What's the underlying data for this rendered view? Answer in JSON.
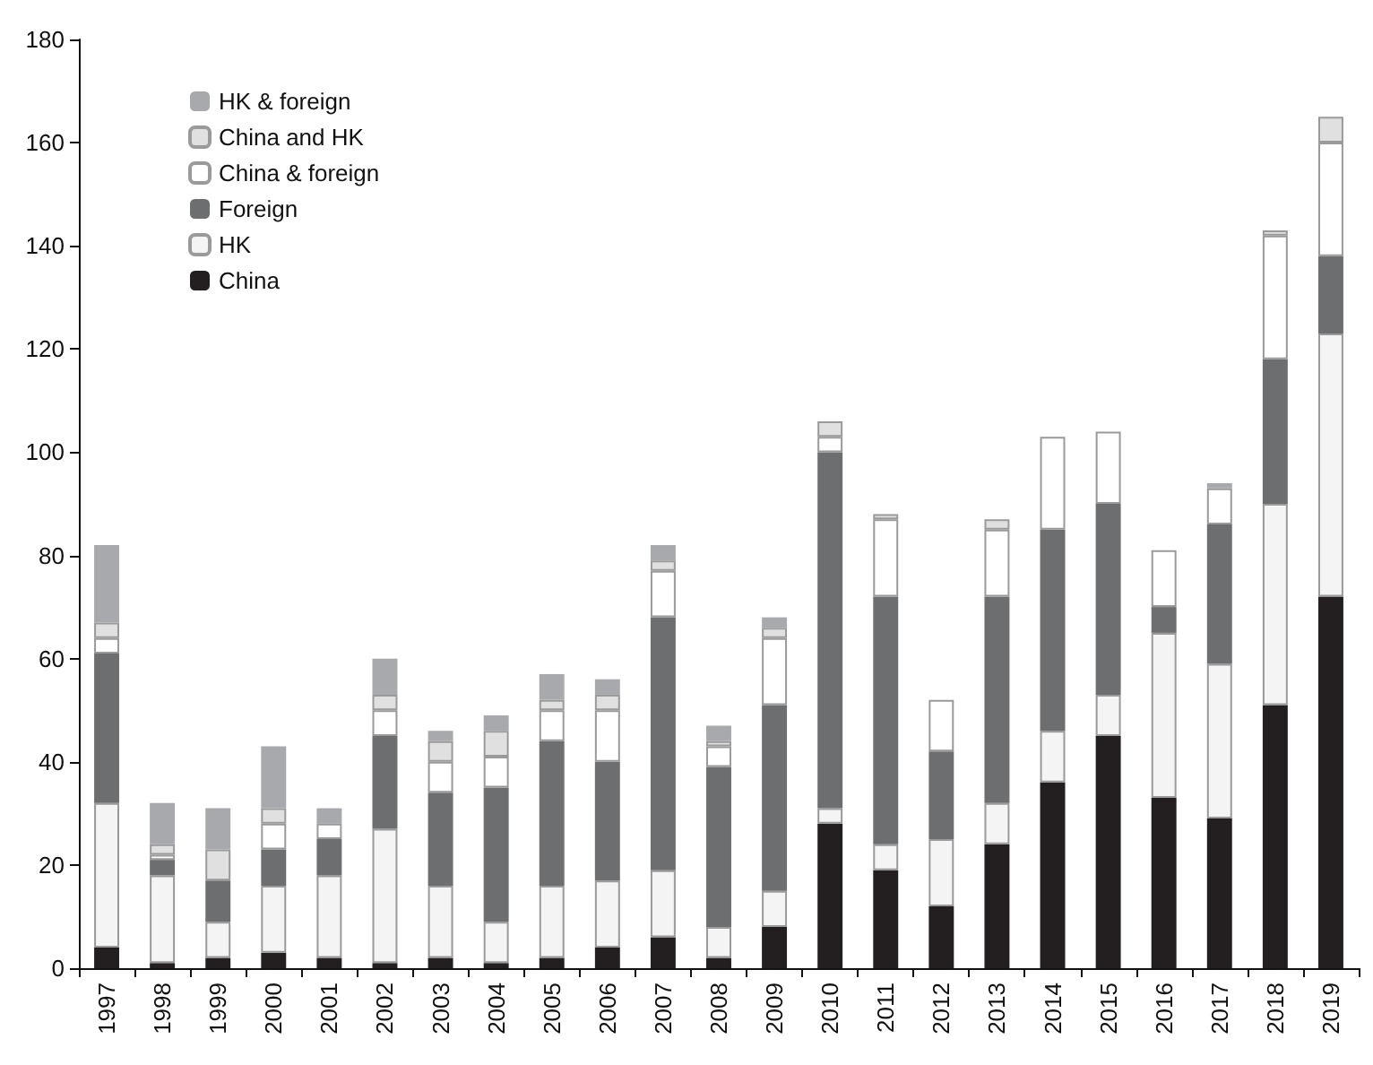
{
  "chart_data": {
    "type": "bar",
    "stacked": true,
    "legend": "top left",
    "grid": false,
    "categories": [
      "1997",
      "1998",
      "1999",
      "2000",
      "2001",
      "2002",
      "2003",
      "2004",
      "2005",
      "2006",
      "2007",
      "2008",
      "2009",
      "2010",
      "2011",
      "2012",
      "2013",
      "2014",
      "2015",
      "2016",
      "2017",
      "2018",
      "2019"
    ],
    "ylim": [
      0,
      180
    ],
    "yticks": [
      0,
      20,
      40,
      60,
      80,
      100,
      120,
      140,
      160,
      180
    ],
    "series": [
      {
        "name": "China",
        "color": "#231f20",
        "values": [
          4,
          1,
          2,
          3,
          2,
          1,
          2,
          1,
          2,
          4,
          6,
          2,
          8,
          28,
          19,
          12,
          24,
          36,
          45,
          33,
          29,
          51,
          72
        ]
      },
      {
        "name": "HK",
        "color": "#f4f4f4",
        "values": [
          28,
          17,
          7,
          13,
          16,
          26,
          14,
          8,
          14,
          13,
          13,
          6,
          7,
          3,
          5,
          13,
          8,
          10,
          8,
          32,
          30,
          39,
          51
        ]
      },
      {
        "name": "Foreign",
        "color": "#6d6e70",
        "values": [
          29,
          3,
          8,
          7,
          7,
          18,
          18,
          26,
          28,
          23,
          49,
          31,
          36,
          69,
          48,
          17,
          40,
          39,
          37,
          5,
          27,
          28,
          15
        ]
      },
      {
        "name": "China & foreign",
        "color": "#ffffff",
        "values": [
          3,
          1,
          0,
          5,
          3,
          5,
          6,
          6,
          6,
          10,
          9,
          4,
          13,
          3,
          15,
          10,
          13,
          18,
          14,
          11,
          7,
          24,
          22
        ]
      },
      {
        "name": "China and HK",
        "color": "#e0e0e0",
        "values": [
          3,
          2,
          6,
          3,
          0,
          3,
          4,
          5,
          2,
          3,
          2,
          1,
          2,
          3,
          1,
          0,
          2,
          0,
          0,
          0,
          0,
          1,
          5
        ]
      },
      {
        "name": "HK & foreign",
        "color": "#a7a9ac",
        "values": [
          15,
          8,
          8,
          12,
          3,
          7,
          2,
          3,
          5,
          3,
          3,
          3,
          2,
          0,
          0,
          0,
          0,
          0,
          0,
          0,
          1,
          0,
          0
        ]
      }
    ]
  }
}
